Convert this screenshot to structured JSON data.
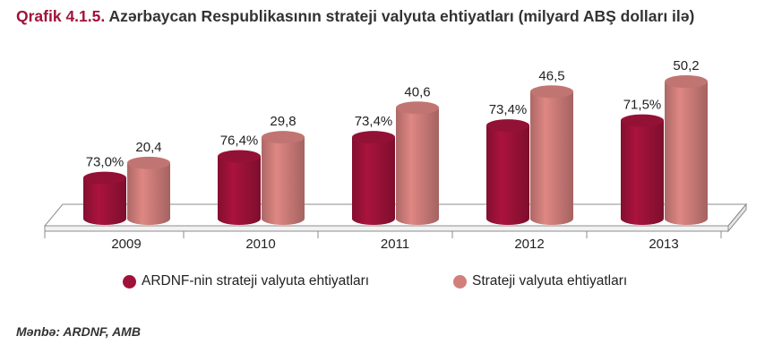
{
  "header": {
    "figure_number": "Qrafik 4.1.5.",
    "title": "Azərbaycan Respublikasının strateji valyuta ehtiyatları (milyard ABŞ dolları ilə)"
  },
  "legend": {
    "items": [
      {
        "label": "ARDNF-nin strateji valyuta ehtiyatları",
        "color": "#a0123a"
      },
      {
        "label": "Strateji valyuta ehtiyatları",
        "color": "#d27f7c"
      }
    ]
  },
  "footer": {
    "source": "Mənbə: ARDNF, AMB"
  },
  "chart_data": {
    "type": "bar",
    "title": "Azərbaycan Respublikasının strateji valyuta ehtiyatları (milyard ABŞ dolları ilə)",
    "categories": [
      "2009",
      "2010",
      "2011",
      "2012",
      "2013"
    ],
    "series": [
      {
        "name": "ARDNF-nin strateji valyuta ehtiyatları",
        "values": [
          14.9,
          22.8,
          29.8,
          34.1,
          35.9
        ],
        "labels": [
          "73,0%",
          "76,4%",
          "73,4%",
          "73,4%",
          "71,5%"
        ],
        "color": "#a0123a"
      },
      {
        "name": "Strateji valyuta ehtiyatları",
        "values": [
          20.4,
          29.8,
          40.6,
          46.5,
          50.2
        ],
        "labels": [
          "20,4",
          "29,8",
          "40,6",
          "46,5",
          "50,2"
        ],
        "color": "#d27f7c"
      }
    ],
    "bar_style": "3d-cylinder",
    "ylim": [
      0,
      50.2
    ],
    "legend_position": "bottom",
    "grid": false
  }
}
